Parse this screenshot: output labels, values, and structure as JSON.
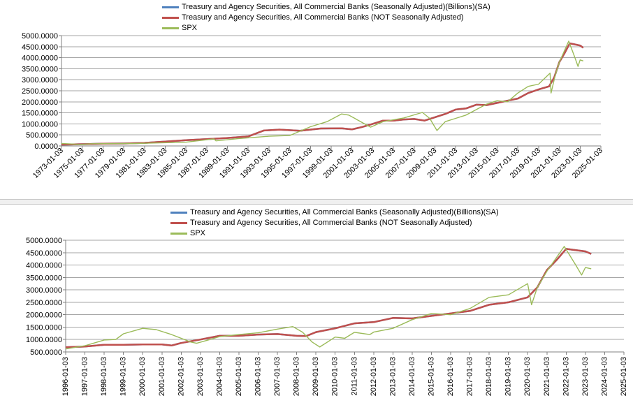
{
  "charts": [
    {
      "id": "top",
      "legend": [
        {
          "label": "Treasury and Agency Securities, All Commercial Banks (Seasonally Adjusted)(Billions)(SA)",
          "color": "#4f81bd"
        },
        {
          "label": "Treasury and Agency Securities, All Commercial Banks (NOT Seasonally Adjusted)",
          "color": "#c0504d"
        },
        {
          "label": "SPX",
          "color": "#9bbb59"
        }
      ],
      "y_ticks": [
        "5000.0000",
        "4500.0000",
        "4000.0000",
        "3500.0000",
        "3000.0000",
        "2500.0000",
        "2000.0000",
        "1500.0000",
        "1000.0000",
        "500.0000",
        "0.0000"
      ],
      "x_ticks": [
        "1973-01-03",
        "1975-01-03",
        "1977-01-03",
        "1979-01-03",
        "1981-01-03",
        "1983-01-03",
        "1985-01-03",
        "1987-01-03",
        "1989-01-03",
        "1991-01-03",
        "1993-01-03",
        "1995-01-03",
        "1997-01-03",
        "1999-01-03",
        "2001-01-03",
        "2003-01-03",
        "2005-01-03",
        "2007-01-03",
        "2009-01-03",
        "2011-01-03",
        "2013-01-03",
        "2015-01-03",
        "2017-01-03",
        "2019-01-03",
        "2021-01-03",
        "2023-01-03",
        "2025-01-03"
      ]
    },
    {
      "id": "bottom",
      "legend": [
        {
          "label": "Treasury and Agency Securities, All Commercial Banks (Seasonally Adjusted)(Billions)(SA)",
          "color": "#4f81bd"
        },
        {
          "label": "Treasury and Agency Securities, All Commercial Banks (NOT Seasonally Adjusted)",
          "color": "#c0504d"
        },
        {
          "label": "SPX",
          "color": "#9bbb59"
        }
      ],
      "y_ticks": [
        "5000.0000",
        "4500.0000",
        "4000.0000",
        "3500.0000",
        "3000.0000",
        "2500.0000",
        "2000.0000",
        "1500.0000",
        "1000.0000",
        "500.0000"
      ],
      "x_ticks": [
        "1996-01-03",
        "1997-01-03",
        "1998-01-03",
        "1999-01-03",
        "2000-01-03",
        "2001-01-03",
        "2002-01-03",
        "2003-01-03",
        "2004-01-03",
        "2005-01-03",
        "2006-01-03",
        "2007-01-03",
        "2008-01-03",
        "2009-01-03",
        "2010-01-03",
        "2011-01-03",
        "2012-01-03",
        "2013-01-03",
        "2014-01-03",
        "2015-01-03",
        "2016-01-03",
        "2017-01-03",
        "2018-01-03",
        "2019-01-03",
        "2020-01-03",
        "2021-01-03",
        "2022-01-03",
        "2023-01-03",
        "2024-01-03",
        "2025-01-03"
      ]
    }
  ],
  "chart_data": [
    {
      "type": "line",
      "ylim": [
        0,
        5000
      ],
      "xlim": [
        1973.0,
        2025.0
      ],
      "grid": true,
      "legend_position": "top",
      "series": [
        {
          "name": "Treasury and Agency Securities, All Commercial Banks (Seasonally Adjusted)(Billions)(SA)",
          "x": [
            1973.0,
            1975.0,
            1977.0,
            1979.0,
            1981.0,
            1983.0,
            1985.0,
            1987.0,
            1989.0,
            1991.0,
            1992.5,
            1994.0,
            1996.0,
            1998.0,
            2000.0,
            2001.0,
            2002.0,
            2003.0,
            2004.0,
            2005.0,
            2006.0,
            2007.0,
            2008.0,
            2009.0,
            2010.0,
            2011.0,
            2012.0,
            2013.0,
            2014.0,
            2015.0,
            2016.0,
            2017.0,
            2018.0,
            2019.0,
            2020.0,
            2020.5,
            2021.0,
            2021.5,
            2022.0,
            2022.5,
            2023.0,
            2023.3
          ],
          "y": [
            60,
            80,
            100,
            110,
            140,
            200,
            260,
            310,
            360,
            430,
            700,
            740,
            690,
            790,
            800,
            750,
            860,
            1000,
            1150,
            1150,
            1200,
            1220,
            1150,
            1300,
            1450,
            1650,
            1700,
            1870,
            1850,
            1950,
            2050,
            2150,
            2400,
            2560,
            2700,
            3100,
            3800,
            4200,
            4650,
            4600,
            4550,
            4450
          ]
        },
        {
          "name": "Treasury and Agency Securities, All Commercial Banks (NOT Seasonally Adjusted)",
          "x": [
            1973.0,
            1975.0,
            1977.0,
            1979.0,
            1981.0,
            1983.0,
            1985.0,
            1987.0,
            1989.0,
            1991.0,
            1992.5,
            1994.0,
            1996.0,
            1998.0,
            2000.0,
            2001.0,
            2002.0,
            2003.0,
            2004.0,
            2005.0,
            2006.0,
            2007.0,
            2008.0,
            2009.0,
            2010.0,
            2011.0,
            2012.0,
            2013.0,
            2014.0,
            2015.0,
            2016.0,
            2017.0,
            2018.0,
            2019.0,
            2020.0,
            2020.5,
            2021.0,
            2021.5,
            2022.0,
            2022.5,
            2023.0,
            2023.3
          ],
          "y": [
            60,
            80,
            100,
            110,
            140,
            200,
            260,
            310,
            360,
            430,
            700,
            740,
            690,
            790,
            800,
            750,
            860,
            1000,
            1150,
            1150,
            1200,
            1220,
            1150,
            1300,
            1450,
            1650,
            1700,
            1870,
            1850,
            1950,
            2050,
            2150,
            2400,
            2560,
            2700,
            3100,
            3800,
            4200,
            4650,
            4600,
            4550,
            4450
          ]
        },
        {
          "name": "SPX",
          "x": [
            1973.0,
            1974.8,
            1976.0,
            1980.0,
            1982.5,
            1985.0,
            1987.7,
            1987.9,
            1990.0,
            1993.0,
            1995.0,
            1997.0,
            1998.6,
            2000.0,
            2000.7,
            2002.8,
            2004.0,
            2006.0,
            2007.8,
            2008.5,
            2009.2,
            2010.0,
            2011.0,
            2012.0,
            2013.0,
            2014.0,
            2015.0,
            2016.0,
            2017.0,
            2018.0,
            2019.0,
            2020.1,
            2020.2,
            2020.6,
            2021.0,
            2021.9,
            2022.5,
            2022.8,
            2023.0,
            2023.3
          ],
          "y": [
            115,
            70,
            100,
            110,
            140,
            170,
            320,
            230,
            330,
            440,
            470,
            870,
            1100,
            1450,
            1400,
            850,
            1100,
            1270,
            1520,
            1250,
            700,
            1100,
            1250,
            1400,
            1650,
            1900,
            2050,
            2000,
            2400,
            2700,
            2800,
            3300,
            2400,
            3200,
            3800,
            4750,
            4000,
            3600,
            3900,
            3850
          ]
        }
      ]
    },
    {
      "type": "line",
      "ylim": [
        500,
        5000
      ],
      "xlim": [
        1996.0,
        2025.0
      ],
      "grid": true,
      "legend_position": "top",
      "series": [
        {
          "name": "Treasury and Agency Securities, All Commercial Banks (Seasonally Adjusted)(Billions)(SA)",
          "x": [
            1996.0,
            1997.0,
            1998.0,
            1999.0,
            2000.0,
            2001.0,
            2001.5,
            2002.0,
            2003.0,
            2004.0,
            2005.0,
            2006.0,
            2007.0,
            2008.0,
            2008.5,
            2009.0,
            2010.0,
            2011.0,
            2012.0,
            2013.0,
            2014.0,
            2015.0,
            2016.0,
            2017.0,
            2018.0,
            2019.0,
            2020.0,
            2020.5,
            2021.0,
            2021.5,
            2022.0,
            2022.5,
            2023.0,
            2023.3
          ],
          "y": [
            690,
            720,
            790,
            790,
            800,
            800,
            760,
            860,
            1000,
            1150,
            1150,
            1200,
            1220,
            1150,
            1140,
            1300,
            1450,
            1650,
            1700,
            1870,
            1850,
            1950,
            2050,
            2150,
            2400,
            2500,
            2700,
            3100,
            3800,
            4200,
            4650,
            4600,
            4550,
            4450
          ]
        },
        {
          "name": "Treasury and Agency Securities, All Commercial Banks (NOT Seasonally Adjusted)",
          "x": [
            1996.0,
            1997.0,
            1998.0,
            1999.0,
            2000.0,
            2001.0,
            2001.5,
            2002.0,
            2003.0,
            2004.0,
            2005.0,
            2006.0,
            2007.0,
            2008.0,
            2008.5,
            2009.0,
            2010.0,
            2011.0,
            2012.0,
            2013.0,
            2014.0,
            2015.0,
            2016.0,
            2017.0,
            2018.0,
            2019.0,
            2020.0,
            2020.5,
            2021.0,
            2021.5,
            2022.0,
            2022.5,
            2023.0,
            2023.3
          ],
          "y": [
            690,
            720,
            790,
            790,
            800,
            800,
            760,
            860,
            1000,
            1150,
            1150,
            1200,
            1220,
            1150,
            1140,
            1300,
            1450,
            1650,
            1700,
            1870,
            1850,
            1950,
            2050,
            2150,
            2400,
            2500,
            2700,
            3100,
            3800,
            4200,
            4650,
            4600,
            4550,
            4450
          ]
        },
        {
          "name": "SPX",
          "x": [
            1996.0,
            1997.0,
            1998.0,
            1998.6,
            1999.0,
            2000.0,
            2000.7,
            2001.5,
            2002.5,
            2002.8,
            2003.5,
            2004.0,
            2005.0,
            2006.0,
            2007.0,
            2007.8,
            2008.3,
            2008.8,
            2009.2,
            2010.0,
            2010.5,
            2011.0,
            2011.8,
            2012.0,
            2013.0,
            2014.0,
            2015.0,
            2016.0,
            2017.0,
            2018.0,
            2019.0,
            2020.0,
            2020.2,
            2020.5,
            2021.0,
            2021.9,
            2022.5,
            2022.8,
            2023.0,
            2023.3
          ],
          "y": [
            620,
            750,
            980,
            1000,
            1230,
            1450,
            1400,
            1200,
            900,
            850,
            1000,
            1120,
            1200,
            1270,
            1420,
            1520,
            1300,
            900,
            700,
            1100,
            1050,
            1290,
            1200,
            1300,
            1450,
            1800,
            2050,
            2000,
            2250,
            2700,
            2800,
            3250,
            2400,
            3100,
            3750,
            4750,
            4000,
            3600,
            3900,
            3850
          ]
        }
      ]
    }
  ]
}
